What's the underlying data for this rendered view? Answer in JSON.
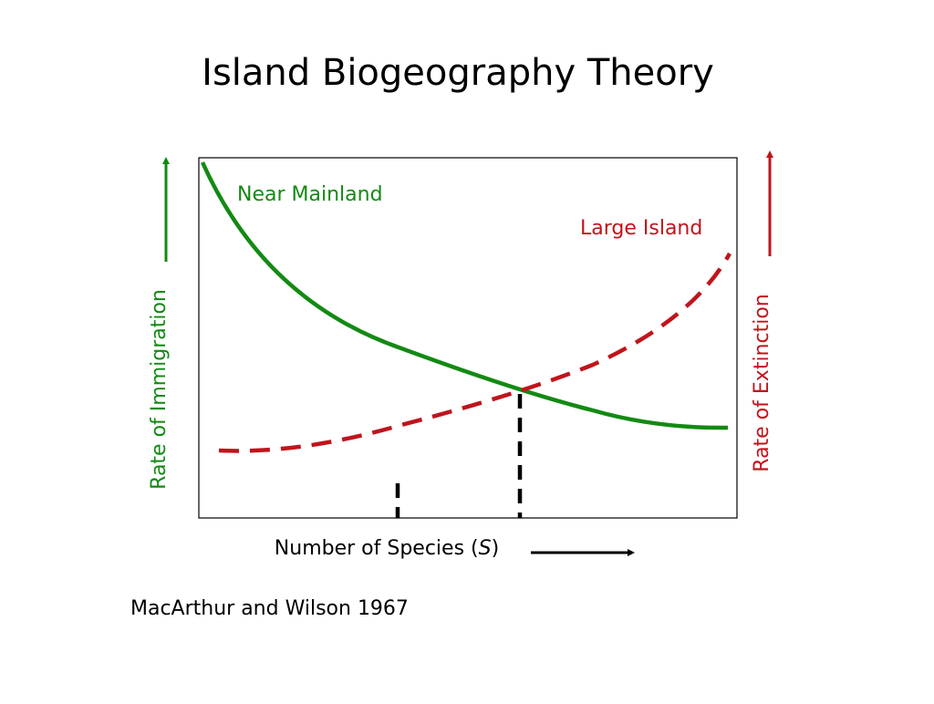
{
  "title": "Island Biogeography Theory",
  "curves": {
    "immigration_label": "Near Mainland",
    "extinction_label": "Large Island"
  },
  "axes": {
    "left_label": "Rate of Immigration",
    "right_label": "Rate of Extinction",
    "x_label": {
      "before": "Number of Species (",
      "variable": "S",
      "after": ")"
    }
  },
  "citation": "MacArthur and Wilson 1967"
}
